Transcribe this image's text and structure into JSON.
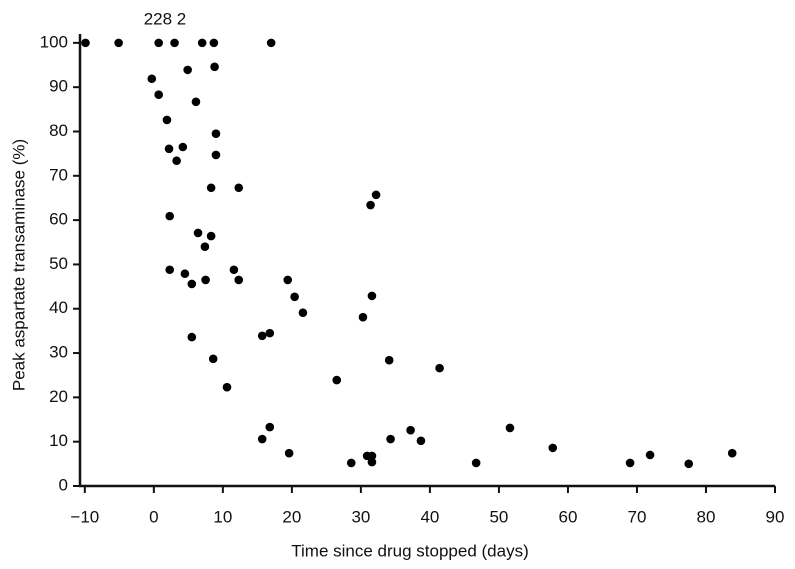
{
  "chart_data": {
    "type": "scatter",
    "x_label": "Time since drug stopped (days)",
    "y_label": "Peak aspartate transaminase (%)",
    "annotation": "228 2",
    "color": "#000000",
    "xlim": [
      -10.7,
      90
    ],
    "ylim": [
      0,
      102
    ],
    "xticks": [
      {
        "value": -10,
        "label": "−10"
      },
      0,
      10,
      20,
      30,
      40,
      50,
      60,
      70,
      80,
      90
    ],
    "yticks": [
      0,
      10,
      20,
      30,
      40,
      50,
      60,
      70,
      80,
      90,
      100
    ],
    "x": [
      -9.9,
      -5.1,
      0.7,
      3.0,
      7.0,
      8.7,
      17.0,
      -0.3,
      4.9,
      8.8,
      0.7,
      6.1,
      1.9,
      9.0,
      2.2,
      4.2,
      9.0,
      3.3,
      8.3,
      12.3,
      2.3,
      32.2,
      31.4,
      6.4,
      8.3,
      7.4,
      2.3,
      4.5,
      11.6,
      12.3,
      5.5,
      7.5,
      19.4,
      20.4,
      31.6,
      21.6,
      30.3,
      16.8,
      15.7,
      5.5,
      8.6,
      34.1,
      10.6,
      26.5,
      41.4,
      16.8,
      15.7,
      19.6,
      34.3,
      37.2,
      38.7,
      51.6,
      57.8,
      28.6,
      30.9,
      31.6,
      31.6,
      46.7,
      69.0,
      71.9,
      77.5,
      83.8
    ],
    "values": [
      100,
      100,
      100,
      100,
      100,
      100,
      100,
      91.9,
      93.9,
      94.6,
      88.3,
      86.7,
      82.6,
      79.5,
      76.1,
      76.5,
      74.7,
      73.4,
      67.3,
      67.3,
      60.9,
      65.7,
      63.4,
      57.1,
      56.4,
      54.0,
      48.8,
      47.9,
      48.8,
      46.5,
      45.6,
      46.5,
      46.5,
      42.7,
      42.9,
      39.1,
      38.1,
      34.5,
      33.9,
      33.6,
      28.7,
      28.4,
      22.3,
      23.9,
      26.6,
      13.3,
      10.6,
      7.4,
      10.6,
      12.6,
      10.2,
      13.1,
      8.6,
      5.2,
      6.8,
      6.8,
      5.4,
      5.2,
      5.2,
      7.0,
      5.0,
      7.4
    ]
  }
}
